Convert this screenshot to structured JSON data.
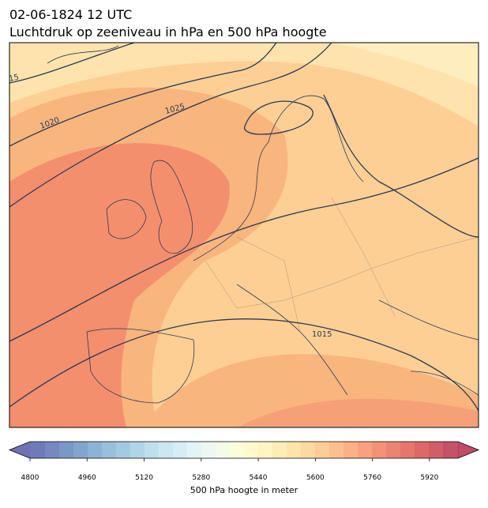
{
  "title": "02-06-1824 12 UTC",
  "subtitle": "Luchtdruk op zeeniveau in hPa en 500 hPa hoogte",
  "contour_labels": [
    "15",
    "1020",
    "1025",
    "1015"
  ],
  "colorbar": {
    "label": "500 hPa hoogte in meter",
    "lim": [
      4800,
      6000
    ],
    "ticks": [
      4800,
      4960,
      5120,
      5280,
      5440,
      5600,
      5760,
      5920
    ]
  }
}
